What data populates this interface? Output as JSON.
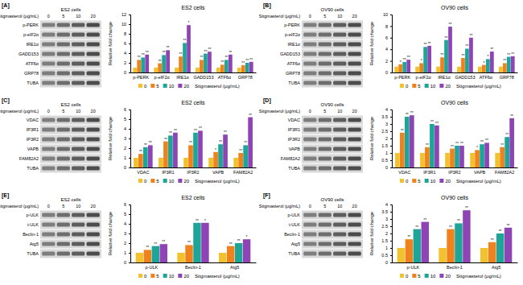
{
  "chart_data": [
    {
      "type": "bar",
      "title": "ES2 cells",
      "y_label": "Relative fold change",
      "categories": [
        "p-PERK",
        "p-eIF2α",
        "IRE1α",
        "GADD153",
        "ATF6α",
        "GRP78"
      ],
      "ylim": [
        0,
        12
      ],
      "yticks": [
        0,
        2,
        4,
        6,
        8,
        10,
        12
      ],
      "legend": "bottom",
      "legend_title": "Stigmasterol (μg/mL)",
      "series": [
        {
          "name": "0",
          "color": "#f2c12e",
          "values": [
            1,
            1,
            1,
            1,
            1,
            1
          ]
        },
        {
          "name": "5",
          "color": "#f0821e",
          "values": [
            2.6,
            1.9,
            3.3,
            2.6,
            1.6,
            1.5
          ],
          "annotations": [
            "**",
            "**",
            "**",
            "**",
            "**",
            "**"
          ]
        },
        {
          "name": "10",
          "color": "#1ea597",
          "values": [
            3.1,
            3.6,
            6.1,
            3.9,
            2.6,
            2.0
          ],
          "annotations": [
            "**",
            "**",
            "**",
            "**",
            "**",
            "**"
          ]
        },
        {
          "name": "20",
          "color": "#8e44b5",
          "values": [
            3.7,
            4.6,
            9.8,
            4.3,
            3.7,
            2.2
          ],
          "annotations": [
            "**",
            "**",
            "*",
            "**",
            "**",
            "**"
          ]
        }
      ]
    },
    {
      "type": "bar",
      "title": "OV90 cells",
      "y_label": "Relative fold change",
      "categories": [
        "p-PERK",
        "p-eIF2α",
        "IRE1α",
        "GADD153",
        "ATF6α",
        "GRP78"
      ],
      "ylim": [
        0,
        10
      ],
      "yticks": [
        0,
        2,
        4,
        6,
        8,
        10
      ],
      "legend": "bottom",
      "legend_title": "Stigmasterol (μg/mL)",
      "series": [
        {
          "name": "0",
          "color": "#f2c12e",
          "values": [
            1,
            1,
            1,
            1,
            1,
            1
          ]
        },
        {
          "name": "5",
          "color": "#f0821e",
          "values": [
            1.4,
            1.6,
            2.6,
            2.5,
            1.3,
            1.6
          ],
          "annotations": [
            "*",
            "*",
            "**",
            "**",
            "*",
            "**"
          ]
        },
        {
          "name": "10",
          "color": "#1ea597",
          "values": [
            1.8,
            4.4,
            5.6,
            4.1,
            2.3,
            2.7
          ],
          "annotations": [
            "**",
            "**",
            "**",
            "**",
            "*",
            "**"
          ]
        },
        {
          "name": "20",
          "color": "#8e44b5",
          "values": [
            2.2,
            4.6,
            7.9,
            6.0,
            3.6,
            2.8
          ],
          "annotations": [
            "**",
            "**",
            "**",
            "**",
            "**",
            "**"
          ]
        }
      ]
    },
    {
      "type": "bar",
      "title": "ES2 cells",
      "y_label": "Relative fold change",
      "categories": [
        "VDAC",
        "IP3R1",
        "IP3R2",
        "VAPB",
        "FAM82A2"
      ],
      "ylim": [
        0,
        6
      ],
      "yticks": [
        0,
        1,
        2,
        3,
        4,
        5,
        6
      ],
      "legend": "bottom",
      "legend_title": "Stigmasterol (μg/mL)",
      "series": [
        {
          "name": "0",
          "color": "#f2c12e",
          "values": [
            1,
            1,
            1,
            1,
            1
          ]
        },
        {
          "name": "5",
          "color": "#f0821e",
          "values": [
            1.4,
            2.7,
            2.3,
            1.6,
            1.5
          ],
          "annotations": [
            "**",
            "**",
            "**",
            "*",
            "**"
          ]
        },
        {
          "name": "10",
          "color": "#1ea597",
          "values": [
            2.1,
            3.3,
            3.6,
            2.4,
            2.3
          ],
          "annotations": [
            "**",
            "**",
            "**",
            "**",
            "**"
          ]
        },
        {
          "name": "20",
          "color": "#8e44b5",
          "values": [
            2.3,
            3.6,
            3.8,
            3.4,
            5.2
          ],
          "annotations": [
            "**",
            "**",
            "**",
            "**",
            "**"
          ]
        }
      ]
    },
    {
      "type": "bar",
      "title": "OV90 cells",
      "y_label": "Relative fold change",
      "categories": [
        "VDAC",
        "IP3R1",
        "IP3R2",
        "VAPB",
        "FAM82A2"
      ],
      "ylim": [
        0,
        4
      ],
      "yticks": [
        0,
        0.5,
        1,
        1.5,
        2,
        2.5,
        3,
        3.5,
        4
      ],
      "legend": "bottom",
      "legend_title": "Stigmasterol (μg/mL)",
      "series": [
        {
          "name": "0",
          "color": "#f2c12e",
          "values": [
            1,
            1,
            1,
            1,
            1
          ]
        },
        {
          "name": "5",
          "color": "#f0821e",
          "values": [
            2.4,
            1.4,
            1.3,
            1.2,
            1.4
          ],
          "annotations": [
            "**",
            "**",
            "**",
            "*",
            "**"
          ]
        },
        {
          "name": "10",
          "color": "#1ea597",
          "values": [
            3.5,
            3.0,
            1.5,
            1.6,
            2.1
          ],
          "annotations": [
            "**",
            "**",
            "**",
            "**",
            "**"
          ]
        },
        {
          "name": "20",
          "color": "#8e44b5",
          "values": [
            3.6,
            2.9,
            1.5,
            1.7,
            3.4
          ],
          "annotations": [
            "**",
            "**",
            "**",
            "**",
            "**"
          ]
        }
      ]
    },
    {
      "type": "bar",
      "title": "ES2 cells",
      "y_label": "Relative fold change",
      "categories": [
        "p-ULK",
        "Beclin-1",
        "Atg5"
      ],
      "ylim": [
        0,
        6
      ],
      "yticks": [
        0,
        1,
        2,
        3,
        4,
        5,
        6
      ],
      "legend": "bottom",
      "legend_title": "Stigmasterol (μg/mL)",
      "series": [
        {
          "name": "0",
          "color": "#f2c12e",
          "values": [
            1,
            1,
            1
          ]
        },
        {
          "name": "5",
          "color": "#f0821e",
          "values": [
            1.3,
            1.8,
            1.7
          ],
          "annotations": [
            "**",
            "**",
            "**"
          ]
        },
        {
          "name": "10",
          "color": "#1ea597",
          "values": [
            1.7,
            4.1,
            2.0
          ],
          "annotations": [
            "**",
            "**",
            "**"
          ]
        },
        {
          "name": "20",
          "color": "#8e44b5",
          "values": [
            1.9,
            4.1,
            2.4
          ],
          "annotations": [
            "**",
            "*",
            "*"
          ]
        }
      ]
    },
    {
      "type": "bar",
      "title": "OV90 cells",
      "y_label": "Relative fold change",
      "categories": [
        "p-ULK",
        "Beclin-1",
        "Atg5"
      ],
      "ylim": [
        0,
        4
      ],
      "yticks": [
        0,
        0.5,
        1,
        1.5,
        2,
        2.5,
        3,
        3.5,
        4
      ],
      "legend": "bottom",
      "legend_title": "Stigmasterol (μg/mL)",
      "series": [
        {
          "name": "0",
          "color": "#f2c12e",
          "values": [
            1,
            1,
            1
          ]
        },
        {
          "name": "5",
          "color": "#f0821e",
          "values": [
            1.6,
            2.3,
            1.4
          ],
          "annotations": [
            "**",
            "**",
            "**"
          ]
        },
        {
          "name": "10",
          "color": "#1ea597",
          "values": [
            2.3,
            2.7,
            2.0
          ],
          "annotations": [
            "**",
            "**",
            "**"
          ]
        },
        {
          "name": "20",
          "color": "#8e44b5",
          "values": [
            2.8,
            3.6,
            2.4
          ],
          "annotations": [
            "**",
            "**",
            "**"
          ]
        }
      ]
    }
  ],
  "figure": {
    "panels": [
      {
        "label": "[A]",
        "blot": {
          "title": "ES2 cells",
          "dose_label": "Stigmasterol (μg/mL)",
          "doses": [
            0,
            5,
            10,
            20
          ],
          "rows": [
            "p-PERK",
            "p-eIF2α",
            "IRE1α",
            "GADD153",
            "ATF6α",
            "GRP78",
            "TUBA"
          ]
        }
      },
      {
        "label": "[B]",
        "blot": {
          "title": "OV90 cells",
          "dose_label": "Stigmasterol (μg/mL)",
          "doses": [
            0,
            5,
            10,
            20
          ],
          "rows": [
            "p-PERK",
            "p-eIF2α",
            "IRE1α",
            "GADD153",
            "ATF6α",
            "GRP78",
            "TUBA"
          ]
        }
      },
      {
        "label": "[C]",
        "blot": {
          "title": "ES2 cells",
          "dose_label": "Stigmasterol (μg/mL)",
          "doses": [
            0,
            5,
            10,
            20
          ],
          "rows": [
            "VDAC",
            "IP3R1",
            "IP3R2",
            "VAPB",
            "FAM82A2",
            "TUBA"
          ]
        }
      },
      {
        "label": "[D]",
        "blot": {
          "title": "OV90 cells",
          "dose_label": "Stigmasterol (μg/mL)",
          "doses": [
            0,
            5,
            10,
            20
          ],
          "rows": [
            "VDAC",
            "IP3R1",
            "IP3R2",
            "VAPB",
            "FAM82A2",
            "TUBA"
          ]
        }
      },
      {
        "label": "[E]",
        "blot": {
          "title": "ES2 cells",
          "dose_label": "Stigmasterol (μg/mL)",
          "doses": [
            0,
            5,
            10,
            20
          ],
          "rows": [
            "p-ULK",
            "t-ULK",
            "Beclin-1",
            "Atg5",
            "TUBA"
          ]
        }
      },
      {
        "label": "[F]",
        "blot": {
          "title": "OV90 cells",
          "dose_label": "Stigmasterol (μg/mL)",
          "doses": [
            0,
            5,
            10,
            20
          ],
          "rows": [
            "p-ULK",
            "t-ULK",
            "Beclin-1",
            "Atg5",
            "TUBA"
          ]
        }
      }
    ]
  }
}
